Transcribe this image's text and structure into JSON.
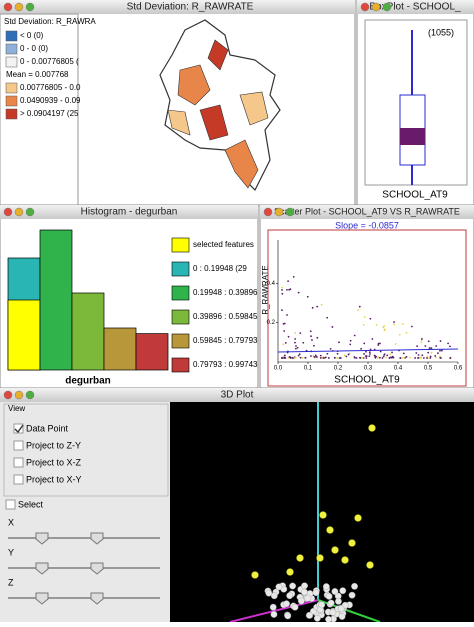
{
  "windows": {
    "map": {
      "title": "Std Deviation: R_RAWRATE",
      "legend": {
        "header": "Std Deviation: R_RAWRA",
        "items": [
          {
            "label": "< 0 (0)",
            "color": "#2f6fb8"
          },
          {
            "label": "0 - 0 (0)",
            "color": "#8fb0d8"
          },
          {
            "label": "0 - 0.00776805 (",
            "color": "#f3f3f3"
          },
          {
            "label": "Mean = 0.007768",
            "color": null
          },
          {
            "label": "0.00776805 - 0.0",
            "color": "#f6c78a"
          },
          {
            "label": "0.0490939 - 0.09",
            "color": "#e8864a"
          },
          {
            "label": "> 0.0904197 (25",
            "color": "#c43a26"
          }
        ]
      }
    },
    "boxplot": {
      "title": "BoxPlot - SCHOOL_",
      "outlier_label": "(1055)",
      "axis_label": "SCHOOL_AT9"
    },
    "histogram": {
      "title": "Histogram - degurban",
      "x_label": "degurban",
      "selected_label": "selected features",
      "selected_color": "#ffff00",
      "bins": [
        {
          "label": "0 : 0.19948 (29",
          "color": "#2ab5b5",
          "count": 80,
          "selected": 50
        },
        {
          "label": "0.19948 : 0.39896",
          "color": "#2fb34a",
          "count": 100,
          "selected": 0
        },
        {
          "label": "0.39896 : 0.59845",
          "color": "#7cb83a",
          "count": 55,
          "selected": 0
        },
        {
          "label": "0.59845 : 0.79793",
          "color": "#b8963a",
          "count": 30,
          "selected": 0
        },
        {
          "label": "0.79793 : 0.99743",
          "color": "#c03a3a",
          "count": 26,
          "selected": 0
        }
      ]
    },
    "scatter": {
      "title": "Scatter Plot - SCHOOL_AT9 VS R_RAWRATE",
      "slope": "Slope = -0.0857",
      "x_label": "SCHOOL_AT9",
      "y_label": "R_RAWRATE",
      "xlim": [
        0,
        0.6
      ],
      "ylim": [
        0,
        0.62
      ],
      "xticks": [
        {
          "value": 0,
          "label": "0.0"
        },
        {
          "value": 0.1,
          "label": "0.1"
        },
        {
          "value": 0.2,
          "label": "0.2"
        },
        {
          "value": 0.3,
          "label": "0.3"
        },
        {
          "value": 0.4,
          "label": "0.4"
        },
        {
          "value": 0.5,
          "label": "0.5"
        },
        {
          "value": 0.6,
          "label": "0.6"
        }
      ],
      "yticks": [
        0.2,
        0.4
      ]
    },
    "plot3d": {
      "title": "3D Plot",
      "group": "View",
      "options": [
        {
          "label": "Data Point",
          "checked": true
        },
        {
          "label": "Project to Z-Y",
          "checked": false
        },
        {
          "label": "Project to X-Z",
          "checked": false
        },
        {
          "label": "Project to X-Y",
          "checked": false
        }
      ],
      "select": "Select",
      "axes": [
        "X",
        "Y",
        "Z"
      ]
    }
  }
}
